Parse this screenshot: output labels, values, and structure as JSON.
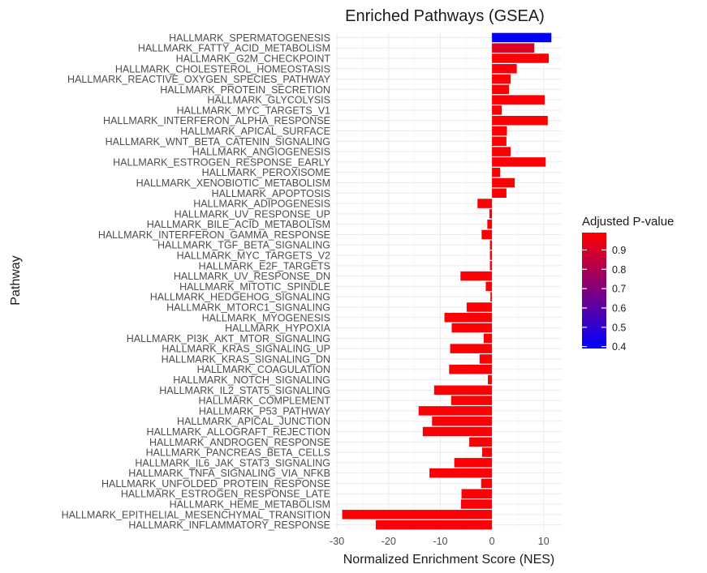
{
  "chart_data": {
    "type": "bar",
    "orientation": "horizontal",
    "title": "Enriched Pathways (GSEA)",
    "xlabel": "Normalized Enrichment Score (NES)",
    "ylabel": "Pathway",
    "xlim": [
      -30.5,
      13.5
    ],
    "xticks": [
      -30,
      -20,
      -10,
      0,
      10
    ],
    "xtick_labels": [
      "-30",
      "-20",
      "-10",
      "0",
      "10"
    ],
    "grid": true,
    "legend": {
      "title": "Adjusted P-value",
      "placement": "right",
      "ticks": [
        0.9,
        0.8,
        0.7,
        0.6,
        0.5,
        0.4
      ],
      "tick_labels": [
        "0.9",
        "0.8",
        "0.7",
        "0.6",
        "0.5",
        "0.4"
      ],
      "range": [
        0.39,
        0.99
      ],
      "low_color": "#0000ff",
      "high_color": "#ff0000"
    },
    "categories": [
      "HALLMARK_SPERMATOGENESIS",
      "HALLMARK_FATTY_ACID_METABOLISM",
      "HALLMARK_G2M_CHECKPOINT",
      "HALLMARK_CHOLESTEROL_HOMEOSTASIS",
      "HALLMARK_REACTIVE_OXYGEN_SPECIES_PATHWAY",
      "HALLMARK_PROTEIN_SECRETION",
      "HALLMARK_GLYCOLYSIS",
      "HALLMARK_MYC_TARGETS_V1",
      "HALLMARK_INTERFERON_ALPHA_RESPONSE",
      "HALLMARK_APICAL_SURFACE",
      "HALLMARK_WNT_BETA_CATENIN_SIGNALING",
      "HALLMARK_ANGIOGENESIS",
      "HALLMARK_ESTROGEN_RESPONSE_EARLY",
      "HALLMARK_PEROXISOME",
      "HALLMARK_XENOBIOTIC_METABOLISM",
      "HALLMARK_APOPTOSIS",
      "HALLMARK_ADIPOGENESIS",
      "HALLMARK_UV_RESPONSE_UP",
      "HALLMARK_BILE_ACID_METABOLISM",
      "HALLMARK_INTERFERON_GAMMA_RESPONSE",
      "HALLMARK_TGF_BETA_SIGNALING",
      "HALLMARK_MYC_TARGETS_V2",
      "HALLMARK_E2F_TARGETS",
      "HALLMARK_UV_RESPONSE_DN",
      "HALLMARK_MITOTIC_SPINDLE",
      "HALLMARK_HEDGEHOG_SIGNALING",
      "HALLMARK_MTORC1_SIGNALING",
      "HALLMARK_MYOGENESIS",
      "HALLMARK_HYPOXIA",
      "HALLMARK_PI3K_AKT_MTOR_SIGNALING",
      "HALLMARK_KRAS_SIGNALING_UP",
      "HALLMARK_KRAS_SIGNALING_DN",
      "HALLMARK_COAGULATION",
      "HALLMARK_NOTCH_SIGNALING",
      "HALLMARK_IL2_STAT5_SIGNALING",
      "HALLMARK_COMPLEMENT",
      "HALLMARK_P53_PATHWAY",
      "HALLMARK_APICAL_JUNCTION",
      "HALLMARK_ALLOGRAFT_REJECTION",
      "HALLMARK_ANDROGEN_RESPONSE",
      "HALLMARK_PANCREAS_BETA_CELLS",
      "HALLMARK_IL6_JAK_STAT3_SIGNALING",
      "HALLMARK_TNFA_SIGNALING_VIA_NFKB",
      "HALLMARK_UNFOLDED_PROTEIN_RESPONSE",
      "HALLMARK_ESTROGEN_RESPONSE_LATE",
      "HALLMARK_HEME_METABOLISM",
      "HALLMARK_EPITHELIAL_MESENCHYMAL_TRANSITION",
      "HALLMARK_INFLAMMATORY_RESPONSE"
    ],
    "values": [
      11.5,
      8.2,
      11.0,
      4.8,
      3.6,
      3.3,
      10.2,
      1.9,
      10.8,
      2.9,
      2.8,
      3.6,
      10.4,
      1.6,
      4.4,
      2.8,
      -2.8,
      -0.5,
      -0.9,
      -2.0,
      -0.4,
      -0.4,
      -0.4,
      -6.1,
      -1.2,
      -0.3,
      -4.9,
      -9.2,
      -7.8,
      -1.6,
      -8.1,
      -2.4,
      -8.3,
      -0.8,
      -11.2,
      -7.9,
      -14.2,
      -11.6,
      -13.4,
      -4.4,
      -1.9,
      -7.3,
      -12.1,
      -2.1,
      -5.9,
      -6.0,
      -29.0,
      -22.5
    ],
    "padj": [
      0.39,
      0.91,
      0.98,
      0.97,
      0.98,
      0.98,
      0.98,
      0.98,
      0.98,
      0.98,
      0.98,
      0.98,
      0.98,
      0.98,
      0.98,
      0.98,
      0.98,
      0.98,
      0.98,
      0.98,
      0.98,
      0.98,
      0.98,
      0.98,
      0.98,
      0.98,
      0.98,
      0.98,
      0.98,
      0.98,
      0.98,
      0.98,
      0.98,
      0.98,
      0.98,
      0.98,
      0.98,
      0.98,
      0.98,
      0.98,
      0.98,
      0.98,
      0.98,
      0.98,
      0.98,
      0.98,
      0.98,
      0.98
    ]
  }
}
